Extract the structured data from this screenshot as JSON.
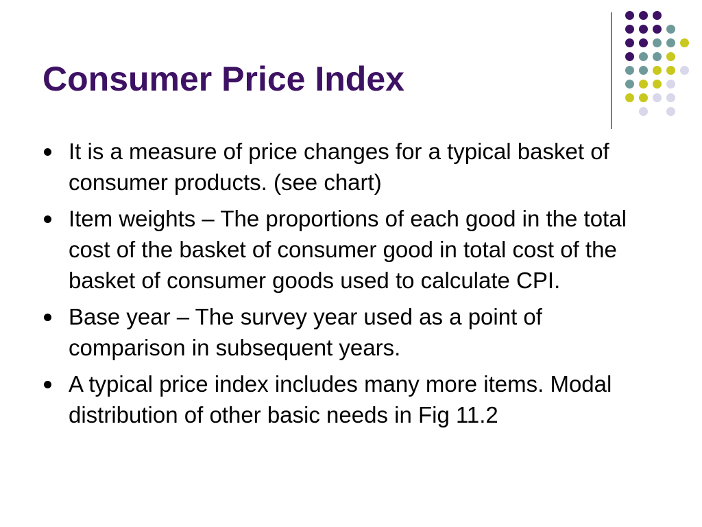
{
  "slide": {
    "title": "Consumer Price Index",
    "bullets": [
      "It is a measure of price changes for a typical basket of consumer products. (see chart)",
      "Item weights – The proportions of each good in the total cost of the basket of consumer good in total cost of the basket of consumer goods used to calculate CPI.",
      "Base year – The survey year used as a point of comparison in subsequent years.",
      "A typical price index includes many more items. Modal distribution of other basic needs in Fig 11.2"
    ]
  },
  "theme": {
    "title_color": "#3d1163",
    "dot_colors": {
      "purple": "#3d1163",
      "teal": "#6f9a9a",
      "yellow": "#c8c81e",
      "lavender": "#d9d7ea"
    }
  }
}
